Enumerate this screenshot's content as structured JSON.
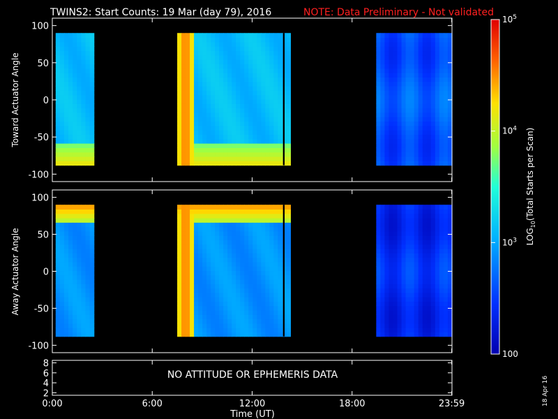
{
  "title": {
    "main": "TWINS2: Start Counts: 19 Mar (day  79), 2016",
    "note": "NOTE: Data Preliminary - Not validated",
    "note_color": "#ff2020"
  },
  "chart_data": [
    {
      "type": "heatmap",
      "panel": "toward",
      "ylabel": "Toward Actuator Angle",
      "ylim": [
        -110,
        110
      ],
      "yticks": [
        -100,
        -50,
        0,
        50,
        100
      ],
      "xlim_hours": [
        0,
        24
      ],
      "angle_range": [
        -88,
        90
      ],
      "data_intervals_hours": [
        [
          0.2,
          2.5
        ],
        [
          7.5,
          14.3
        ],
        [
          19.45,
          24.0
        ]
      ],
      "black_gap_hours": [
        13.85,
        13.95
      ],
      "intensity_log10": {
        "background": 3.1,
        "low_angle_band": 4.2,
        "midday_column": 4.6,
        "late_interval": 2.6
      }
    },
    {
      "type": "heatmap",
      "panel": "away",
      "ylabel": "Away Actuator Angle",
      "ylim": [
        -110,
        110
      ],
      "yticks": [
        -100,
        -50,
        0,
        50,
        100
      ],
      "xlim_hours": [
        0,
        24
      ],
      "angle_range": [
        -88,
        90
      ],
      "data_intervals_hours": [
        [
          0.2,
          2.5
        ],
        [
          7.5,
          14.3
        ],
        [
          19.45,
          24.0
        ]
      ],
      "black_gap_hours": [
        13.85,
        13.95
      ],
      "intensity_log10": {
        "background": 2.9,
        "high_angle_band": 4.5,
        "midday_column": 4.6,
        "late_interval": 2.4
      }
    },
    {
      "type": "line",
      "panel": "ephemeris",
      "ylim": [
        1.5,
        8.5
      ],
      "yticks": [
        2,
        4,
        6,
        8
      ],
      "message": "NO ATTITUDE OR EPHEMERIS DATA"
    }
  ],
  "x_axis": {
    "label": "Time (UT)",
    "ticks": [
      {
        "hour": 0,
        "label": "0:00"
      },
      {
        "hour": 6,
        "label": "6:00"
      },
      {
        "hour": 12,
        "label": "12:00"
      },
      {
        "hour": 18,
        "label": "18:00"
      },
      {
        "hour": 23.983,
        "label": "23:59"
      }
    ]
  },
  "colorbar": {
    "label_prefix": "LOG",
    "label_sub": "10",
    "label_suffix": "(Total Starts per Scan)",
    "log_min": 2,
    "log_max": 5,
    "ticks": [
      {
        "log": 5,
        "base": "10",
        "exp": "5"
      },
      {
        "log": 4,
        "base": "10",
        "exp": "4"
      },
      {
        "log": 3,
        "base": "10",
        "exp": "3"
      },
      {
        "log": 2,
        "base": "100",
        "exp": ""
      }
    ]
  },
  "date_stamp": "18 Apr 16"
}
